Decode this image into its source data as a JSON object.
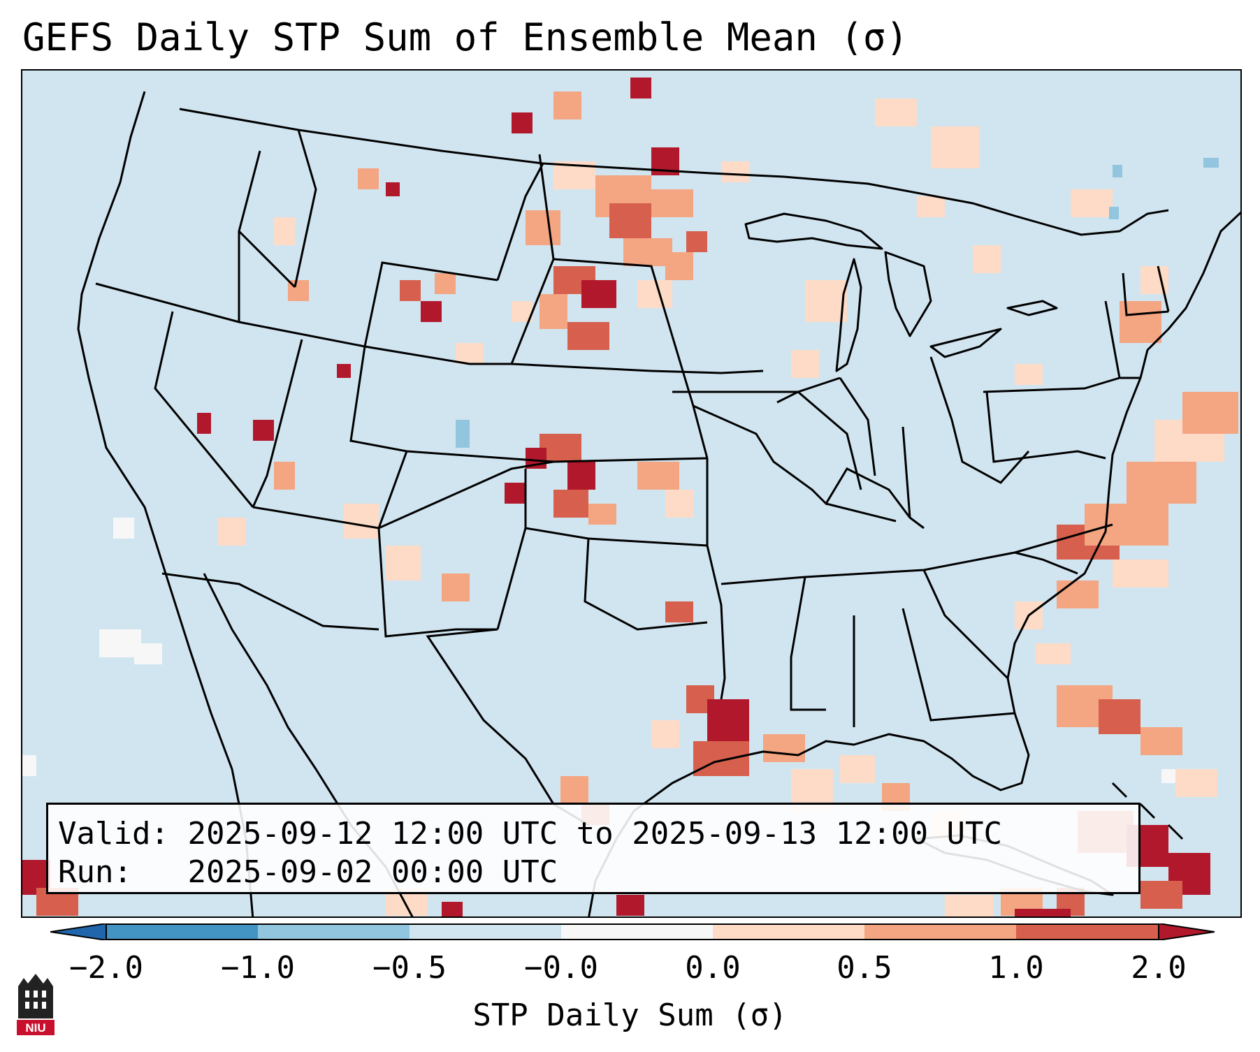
{
  "title": "GEFS Daily STP Sum of Ensemble Mean (σ)",
  "info": {
    "valid_label": "Valid:",
    "valid_value": "2025-09-12 12:00 UTC to 2025-09-13 12:00 UTC",
    "run_label": "Run:",
    "run_value": "2025-09-02 00:00 UTC"
  },
  "colorbar": {
    "label": "STP Daily Sum (σ)",
    "ticks": [
      "−2.0",
      "−1.0",
      "−0.5",
      "−0.0",
      "0.0",
      "0.5",
      "1.0",
      "2.0"
    ],
    "colors": [
      "#4393c3",
      "#92c5de",
      "#d1e5f0",
      "#f7f7f7",
      "#fddbc7",
      "#f4a582",
      "#d6604d",
      "#b2182b"
    ],
    "extend_low_color": "#2166ac",
    "extend_high_color": "#b2182b"
  },
  "chart_data": {
    "type": "heatmap",
    "title": "GEFS Daily STP Sum of Ensemble Mean (σ)",
    "variable": "STP Daily Sum (σ)",
    "levels": [
      -2.0,
      -1.0,
      -0.5,
      -0.0,
      0.0,
      0.5,
      1.0,
      2.0
    ],
    "region": "Contiguous United States",
    "anomaly_areas": [
      {
        "region": "North and South Dakota",
        "category": "1.0 to 2.0"
      },
      {
        "region": "Western Kansas / eastern Colorado",
        "category": "1.0 to 2.0"
      },
      {
        "region": "Central Wyoming",
        "category": "1.0 to 2.0"
      },
      {
        "region": "Texas Gulf coast",
        "category": "0.5 to 2.0"
      },
      {
        "region": "Off Carolinas coast (Atlantic)",
        "category": "0.5 to 2.0"
      },
      {
        "region": "Bahamas / Cuba",
        "category": "1.0 to 2.0"
      },
      {
        "region": "Colorado",
        "category": "-1.0 to -0.5"
      },
      {
        "region": "Pacific off Baja",
        "category": "-0.0 to 0.0"
      }
    ]
  },
  "logo": {
    "text": "NIU"
  }
}
